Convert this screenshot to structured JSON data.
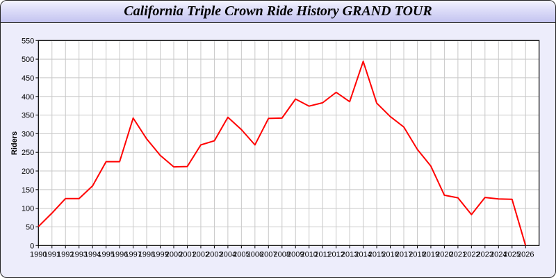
{
  "chart_data": {
    "type": "line",
    "title": "California Triple Crown Ride History GRAND TOUR",
    "xlabel": "",
    "ylabel": "Riders",
    "xlim": [
      1990,
      2027
    ],
    "ylim": [
      0,
      550
    ],
    "ytick_step": 50,
    "grid": true,
    "line_color": "#ff0000",
    "x": [
      1990,
      1991,
      1992,
      1993,
      1994,
      1995,
      1996,
      1997,
      1998,
      1999,
      2000,
      2001,
      2002,
      2003,
      2004,
      2005,
      2006,
      2007,
      2008,
      2009,
      2010,
      2011,
      2012,
      2013,
      2014,
      2015,
      2016,
      2017,
      2018,
      2019,
      2020,
      2021,
      2022,
      2023,
      2024,
      2025,
      2026
    ],
    "values": [
      51,
      87,
      126,
      126,
      160,
      225,
      225,
      342,
      286,
      242,
      211,
      212,
      270,
      281,
      344,
      311,
      270,
      341,
      342,
      393,
      374,
      383,
      411,
      386,
      494,
      382,
      346,
      318,
      258,
      213,
      135,
      128,
      83,
      129,
      125,
      124,
      0
    ]
  }
}
